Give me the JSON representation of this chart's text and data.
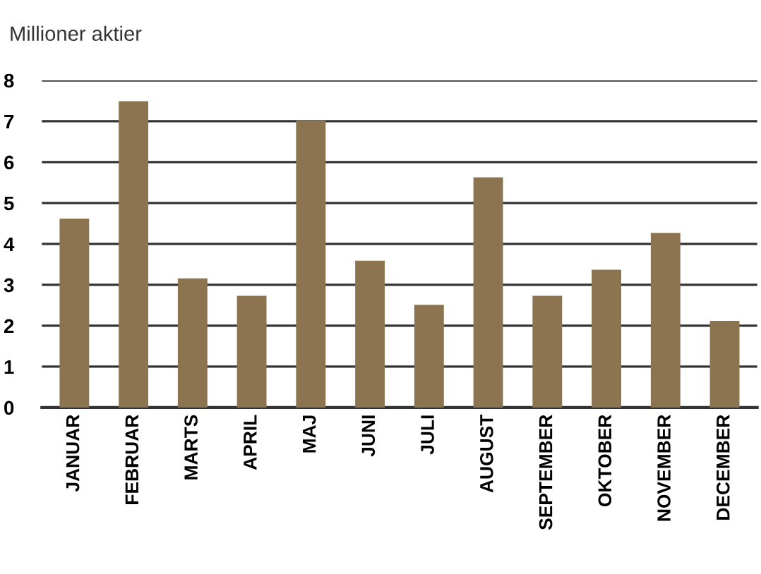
{
  "chart_data": {
    "type": "bar",
    "title": "Millioner aktier",
    "categories": [
      "JANUAR",
      "FEBRUAR",
      "MARTS",
      "APRIL",
      "MAJ",
      "JUNI",
      "JULI",
      "AUGUST",
      "SEPTEMBER",
      "OKTOBER",
      "NOVEMBER",
      "DECEMBER"
    ],
    "values": [
      4.62,
      7.49,
      3.16,
      2.73,
      7.02,
      3.59,
      2.51,
      5.63,
      2.73,
      3.37,
      4.27,
      2.12
    ],
    "color": "#8c7450",
    "ylim": [
      0,
      8
    ],
    "yticks": [
      0,
      1,
      2,
      3,
      4,
      5,
      6,
      7,
      8
    ],
    "grid": "y",
    "legend": false
  }
}
